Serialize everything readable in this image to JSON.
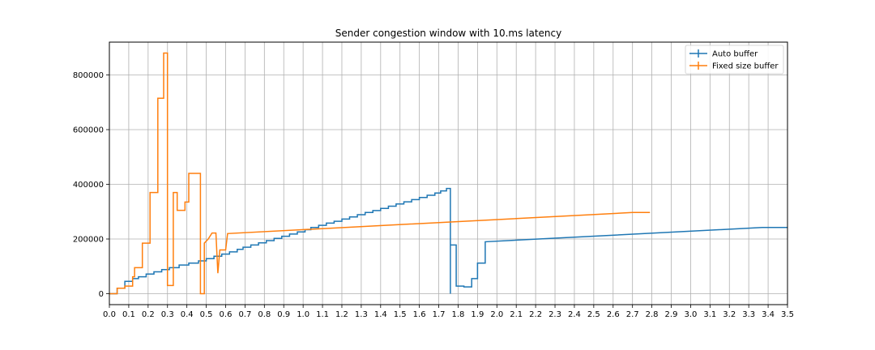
{
  "chart_data": {
    "type": "line",
    "title": "Sender congestion window with 10.ms latency",
    "xlabel": "",
    "ylabel": "",
    "xlim": [
      0.0,
      3.5
    ],
    "ylim": [
      -40000,
      920000
    ],
    "grid": true,
    "legend_position": "top-right",
    "xticks": [
      "0.0",
      "0.1",
      "0.2",
      "0.3",
      "0.4",
      "0.5",
      "0.6",
      "0.7",
      "0.8",
      "0.9",
      "1.0",
      "1.1",
      "1.2",
      "1.3",
      "1.4",
      "1.5",
      "1.6",
      "1.7",
      "1.8",
      "1.9",
      "2.0",
      "2.1",
      "2.2",
      "2.3",
      "2.4",
      "2.5",
      "2.6",
      "2.7",
      "2.8",
      "2.9",
      "3.0",
      "3.1",
      "3.2",
      "3.3",
      "3.4",
      "3.5"
    ],
    "yticks": [
      "0",
      "200000",
      "400000",
      "600000",
      "800000"
    ],
    "series": [
      {
        "name": "Auto buffer",
        "color": "#1f77b4",
        "steps": [
          [
            0.0,
            0
          ],
          [
            0.04,
            20000
          ],
          [
            0.08,
            45000
          ],
          [
            0.12,
            55000
          ],
          [
            0.15,
            62000
          ],
          [
            0.19,
            72000
          ],
          [
            0.23,
            80000
          ],
          [
            0.27,
            88000
          ],
          [
            0.31,
            95000
          ],
          [
            0.36,
            105000
          ],
          [
            0.41,
            112000
          ],
          [
            0.46,
            120000
          ],
          [
            0.5,
            128000
          ],
          [
            0.54,
            137000
          ],
          [
            0.58,
            145000
          ],
          [
            0.62,
            153000
          ],
          [
            0.66,
            162000
          ],
          [
            0.69,
            170000
          ],
          [
            0.73,
            178000
          ],
          [
            0.77,
            186000
          ],
          [
            0.81,
            194000
          ],
          [
            0.85,
            202000
          ],
          [
            0.89,
            210000
          ],
          [
            0.93,
            218000
          ],
          [
            0.97,
            226000
          ],
          [
            1.01,
            234000
          ],
          [
            1.04,
            242000
          ],
          [
            1.08,
            250000
          ],
          [
            1.12,
            258000
          ],
          [
            1.16,
            265000
          ],
          [
            1.2,
            273000
          ],
          [
            1.24,
            281000
          ],
          [
            1.28,
            289000
          ],
          [
            1.32,
            297000
          ],
          [
            1.36,
            304000
          ],
          [
            1.4,
            312000
          ],
          [
            1.44,
            320000
          ],
          [
            1.48,
            328000
          ],
          [
            1.52,
            336000
          ],
          [
            1.56,
            344000
          ],
          [
            1.6,
            352000
          ],
          [
            1.64,
            360000
          ],
          [
            1.68,
            368000
          ],
          [
            1.71,
            376000
          ],
          [
            1.74,
            385000
          ],
          [
            1.76,
            0
          ],
          [
            1.76,
            178000
          ],
          [
            1.79,
            28000
          ],
          [
            1.83,
            25000
          ],
          [
            1.87,
            55000
          ],
          [
            1.9,
            112000
          ],
          [
            1.94,
            190000
          ]
        ],
        "tail": [
          [
            1.94,
            190000
          ],
          [
            3.37,
            242000
          ],
          [
            3.5,
            242000
          ]
        ]
      },
      {
        "name": "Fixed size buffer",
        "color": "#ff7f0e",
        "steps": [
          [
            0.0,
            0
          ],
          [
            0.04,
            20000
          ],
          [
            0.08,
            28000
          ],
          [
            0.12,
            62000
          ],
          [
            0.13,
            95000
          ],
          [
            0.17,
            185000
          ],
          [
            0.21,
            370000
          ],
          [
            0.25,
            715000
          ],
          [
            0.28,
            880000
          ],
          [
            0.3,
            30000
          ],
          [
            0.33,
            370000
          ],
          [
            0.35,
            305000
          ],
          [
            0.39,
            335000
          ],
          [
            0.41,
            440000
          ],
          [
            0.47,
            0
          ],
          [
            0.49,
            185000
          ]
        ],
        "ramp": [
          [
            0.49,
            185000
          ],
          [
            0.51,
            200000
          ],
          [
            0.53,
            222000
          ],
          [
            0.55,
            222000
          ],
          [
            0.56,
            75000
          ],
          [
            0.57,
            160000
          ],
          [
            0.6,
            160000
          ],
          [
            0.61,
            220000
          ]
        ],
        "tail": [
          [
            0.61,
            220000
          ],
          [
            2.7,
            297000
          ],
          [
            2.79,
            297000
          ]
        ]
      }
    ]
  }
}
